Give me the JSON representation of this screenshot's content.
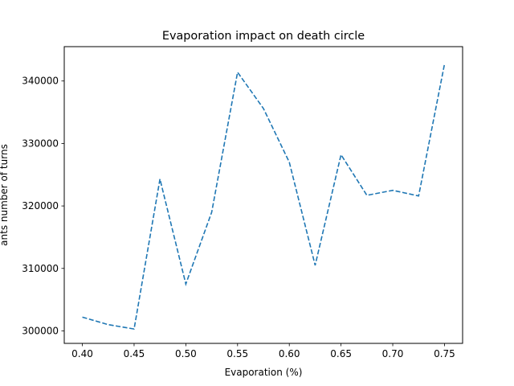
{
  "chart_data": {
    "type": "line",
    "title": "Evaporation impact on death circle",
    "xlabel": "Evaporation (%)",
    "ylabel": "ants number of turns",
    "xlim": [
      0.3825,
      0.7675
    ],
    "ylim": [
      298000,
      345500
    ],
    "x_ticks": [
      0.4,
      0.45,
      0.5,
      0.55,
      0.6,
      0.65,
      0.7,
      0.75
    ],
    "x_tick_labels": [
      "0.40",
      "0.45",
      "0.50",
      "0.55",
      "0.60",
      "0.65",
      "0.70",
      "0.75"
    ],
    "y_ticks": [
      300000,
      310000,
      320000,
      330000,
      340000
    ],
    "y_tick_labels": [
      "300000",
      "310000",
      "320000",
      "330000",
      "340000"
    ],
    "grid": false,
    "series": [
      {
        "color": "#1f77b4",
        "line_style": "dashed",
        "x": [
          0.4,
          0.425,
          0.45,
          0.475,
          0.5,
          0.525,
          0.55,
          0.575,
          0.6,
          0.625,
          0.65,
          0.675,
          0.7,
          0.725,
          0.75
        ],
        "y": [
          302200,
          301000,
          300300,
          324300,
          307500,
          319000,
          341400,
          335600,
          327000,
          310500,
          328200,
          321700,
          322500,
          321600,
          342700
        ]
      }
    ]
  }
}
